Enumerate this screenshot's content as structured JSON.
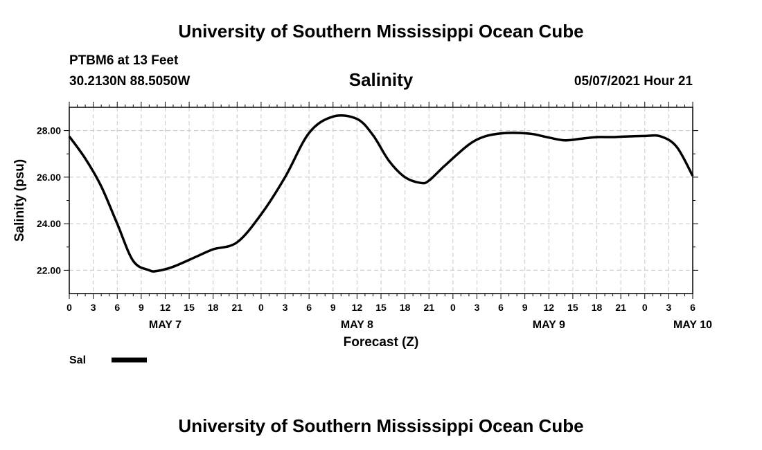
{
  "header": {
    "title": "University of Southern Mississippi Ocean Cube",
    "station": "PTBM6 at 13 Feet",
    "coords": "30.2130N  88.5050W",
    "subtitle": "Salinity",
    "datetime": "05/07/2021 Hour 21"
  },
  "footer": {
    "title": "University of Southern Mississippi Ocean Cube"
  },
  "chart_data": {
    "type": "line",
    "title": "Salinity",
    "xlabel": "Forecast (Z)",
    "ylabel": "Salinity (psu)",
    "xlim": [
      0,
      78
    ],
    "ylim": [
      21.0,
      29.0
    ],
    "yticks": [
      22.0,
      24.0,
      26.0,
      28.0
    ],
    "ytick_labels": [
      "22.00",
      "24.00",
      "26.00",
      "28.00"
    ],
    "xtick_labels": [
      "0",
      "3",
      "6",
      "9",
      "12",
      "15",
      "18",
      "21",
      "0",
      "3",
      "6",
      "9",
      "12",
      "15",
      "18",
      "21",
      "0",
      "3",
      "6",
      "9",
      "12",
      "15",
      "18",
      "21",
      "0",
      "3",
      "6"
    ],
    "date_labels": [
      {
        "label": "MAY 7",
        "hour": 12
      },
      {
        "label": "MAY 8",
        "hour": 36
      },
      {
        "label": "MAY 9",
        "hour": 60
      },
      {
        "label": "MAY 10",
        "hour": 78
      }
    ],
    "grid": true,
    "legend": [
      {
        "name": "Sal",
        "color": "#000000"
      }
    ],
    "series": [
      {
        "name": "Sal",
        "x": [
          0,
          2,
          4,
          6,
          8,
          10,
          11,
          13,
          16,
          18,
          21,
          24,
          27,
          30,
          33,
          36,
          38,
          40,
          42,
          44,
          45,
          47,
          50,
          52,
          54,
          56,
          58,
          60,
          62,
          64,
          66,
          68,
          70,
          72,
          74,
          76,
          78
        ],
        "values": [
          27.75,
          26.8,
          25.6,
          24.0,
          22.4,
          22.0,
          21.97,
          22.15,
          22.6,
          22.9,
          23.2,
          24.4,
          26.0,
          27.9,
          28.6,
          28.5,
          27.8,
          26.7,
          26.0,
          25.75,
          25.85,
          26.5,
          27.4,
          27.75,
          27.88,
          27.9,
          27.85,
          27.7,
          27.58,
          27.65,
          27.72,
          27.72,
          27.75,
          27.77,
          27.75,
          27.3,
          26.05
        ]
      }
    ]
  }
}
